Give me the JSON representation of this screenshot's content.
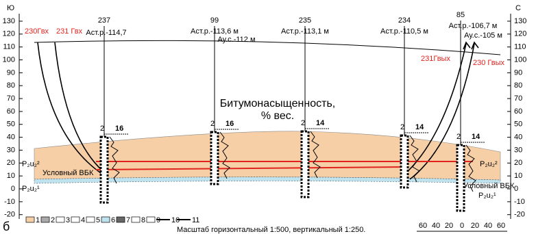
{
  "axis": {
    "south_label": "Ю",
    "north_label": "С",
    "ticks": [
      130,
      120,
      110,
      100,
      90,
      80,
      70,
      60,
      50,
      40,
      30,
      20,
      10,
      0,
      -10,
      -20
    ]
  },
  "wells": [
    {
      "number": "237",
      "notes": [
        "Аст.р.-114,7"
      ],
      "scale": [
        "2",
        "16"
      ]
    },
    {
      "number": "99",
      "notes": [
        "Аст.р.-113,6 м",
        "Ау.с.-112 м"
      ],
      "scale": [
        "2",
        "16"
      ]
    },
    {
      "number": "235",
      "notes": [
        "Аст.р.-113,1 м"
      ],
      "scale": [
        "2",
        "14"
      ]
    },
    {
      "number": "234",
      "notes": [
        "Аст.р.-110,5 м"
      ],
      "scale": [
        "2",
        "14"
      ]
    },
    {
      "number": "85",
      "notes": [
        "Аст.р.-106,7 м",
        "Ау.с.-105 м"
      ],
      "scale": [
        "2",
        "14"
      ]
    }
  ],
  "wellbores": {
    "in": [
      "230Гвх",
      "231 Гвх"
    ],
    "out": [
      "231Гвых",
      "230 Гвых"
    ]
  },
  "title": [
    "Битумонасыщенность,",
    "% вес."
  ],
  "formations": {
    "upper_left": "P₂u₂²",
    "lower_left": "P₂u₂¹",
    "upper_right": "P₂u₂²",
    "lower_right": "P₂u₂¹"
  },
  "bvk_labels": [
    "Условный ВБК",
    "Условный ВБК"
  ],
  "legend": [
    "1",
    "2",
    "3",
    "4",
    "5",
    "6",
    "7",
    "8",
    "9",
    "10",
    "11"
  ],
  "figure_label": "б",
  "scale_note": "Масштаб горизонтальный 1:500, вертикальный 1:250.",
  "scale_bar": [
    60,
    40,
    20,
    0,
    20,
    40,
    60
  ]
}
